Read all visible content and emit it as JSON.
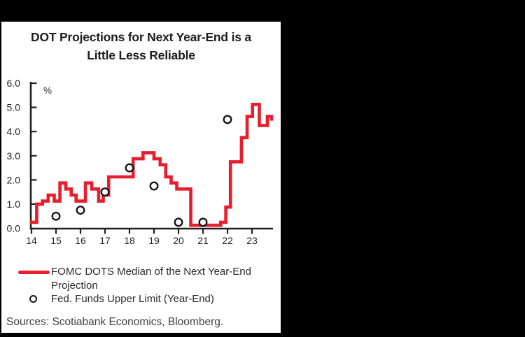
{
  "title": {
    "line1": "DOT Projections for Next Year-End is a",
    "line2": "Little Less Reliable"
  },
  "chart_data": {
    "type": "line",
    "subtype": "step",
    "title": "DOT Projections for Next Year-End is a Little Less Reliable",
    "unit_label": "%",
    "x_tick_labels": [
      "14",
      "15",
      "16",
      "17",
      "18",
      "19",
      "20",
      "21",
      "22",
      "23"
    ],
    "y_tick_labels": [
      "6.0",
      "5.0",
      "4.0",
      "3.0",
      "2.0",
      "1.0",
      "0.0"
    ],
    "ylim": [
      0.0,
      6.0
    ],
    "xlim": [
      13.94,
      23.9
    ],
    "grid": false,
    "legend_position": "below",
    "series": [
      {
        "name": "FOMC DOTS Median of the Next Year-End Projection",
        "type": "step-line",
        "color": "#e61e2d",
        "points": [
          [
            13.94,
            0.25
          ],
          [
            14.21,
            1.0
          ],
          [
            14.45,
            1.125
          ],
          [
            14.68,
            1.375
          ],
          [
            14.93,
            1.125
          ],
          [
            15.16,
            1.875
          ],
          [
            15.4,
            1.625
          ],
          [
            15.62,
            1.375
          ],
          [
            15.82,
            1.125
          ],
          [
            16.2,
            1.875
          ],
          [
            16.46,
            1.625
          ],
          [
            16.74,
            1.125
          ],
          [
            16.93,
            1.375
          ],
          [
            17.15,
            2.125
          ],
          [
            18.15,
            2.875
          ],
          [
            18.55,
            3.125
          ],
          [
            19.0,
            2.875
          ],
          [
            19.25,
            2.625
          ],
          [
            19.48,
            2.125
          ],
          [
            19.7,
            1.875
          ],
          [
            19.93,
            1.625
          ],
          [
            20.5,
            0.125
          ],
          [
            21.72,
            0.25
          ],
          [
            21.93,
            0.875
          ],
          [
            22.12,
            2.75
          ],
          [
            22.57,
            3.75
          ],
          [
            22.8,
            4.625
          ],
          [
            23.02,
            5.125
          ],
          [
            23.3,
            4.25
          ],
          [
            23.63,
            4.625
          ],
          [
            23.8,
            4.45
          ]
        ]
      },
      {
        "name": "Fed. Funds Upper Limit (Year-End)",
        "type": "scatter",
        "marker": "open-circle",
        "color": "#161616",
        "points": [
          [
            15,
            0.5
          ],
          [
            16,
            0.75
          ],
          [
            17,
            1.5
          ],
          [
            18,
            2.5
          ],
          [
            19,
            1.75
          ],
          [
            20,
            0.25
          ],
          [
            21,
            0.25
          ],
          [
            22,
            4.5
          ]
        ]
      }
    ]
  },
  "legend": {
    "items": [
      {
        "swatch": "red-line",
        "label_line1": "FOMC DOTS Median of the Next Year-End",
        "label_line2": "Projection"
      },
      {
        "swatch": "open-circle",
        "label": "Fed. Funds Upper Limit (Year-End)"
      }
    ]
  },
  "footer": {
    "sources": "Sources: Scotiabank Economics, Bloomberg."
  },
  "colors": {
    "line_red": "#e61e2d",
    "axis_black": "#231f20",
    "background": "#000000",
    "card": "#ffffff"
  }
}
